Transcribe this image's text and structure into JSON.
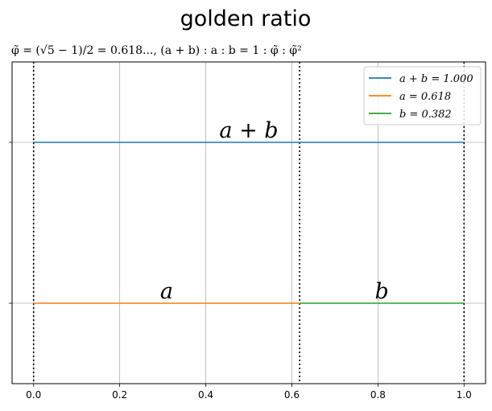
{
  "chart_data": {
    "type": "line",
    "title": "golden ratio",
    "subtitle": "φ̃ = (√5 − 1)/2 = 0.618..., (a + b) : a : b = 1 : φ̃ : φ̃²",
    "xlabel": "",
    "ylabel": "",
    "xlim": [
      -0.05,
      1.05
    ],
    "ylim": [
      -0.5,
      1.5
    ],
    "x_ticks": [
      0.0,
      0.2,
      0.4,
      0.6,
      0.8,
      1.0
    ],
    "x_tick_labels": [
      "0.0",
      "0.2",
      "0.4",
      "0.6",
      "0.8",
      "1.0"
    ],
    "y_ticks": [
      1,
      0
    ],
    "grid": true,
    "legend_position": "top-right",
    "series": [
      {
        "name": "a + b = 1.000",
        "color": "#1f77b4",
        "x": [
          0,
          1
        ],
        "y": [
          1,
          1
        ]
      },
      {
        "name": "a = 0.618",
        "color": "#ff7f0e",
        "x": [
          0,
          0.618
        ],
        "y": [
          0,
          0
        ]
      },
      {
        "name": "b = 0.382",
        "color": "#2ca02c",
        "x": [
          0.618,
          1
        ],
        "y": [
          0,
          0
        ]
      }
    ],
    "vertical_lines": [
      0,
      0.618,
      1
    ],
    "annotations": [
      {
        "text": "a + b",
        "x": 0.5,
        "y": 1
      },
      {
        "text": "a",
        "x": 0.309,
        "y": 0
      },
      {
        "text": "b",
        "x": 0.809,
        "y": 0
      }
    ]
  }
}
